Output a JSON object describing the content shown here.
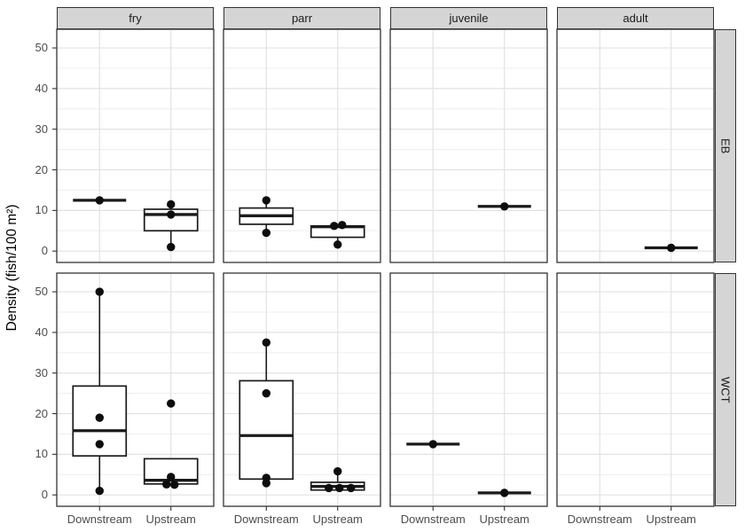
{
  "chart_data": {
    "type": "boxplot",
    "title": "",
    "ylabel": "Density (fish/100 m²)",
    "xlabel": "",
    "legend": "none",
    "grid": true,
    "col_facets": [
      "fry",
      "parr",
      "juvenile",
      "adult"
    ],
    "row_facets": [
      "EB",
      "WCT"
    ],
    "xcategories": [
      "Downstream",
      "Upstream"
    ],
    "ylim": [
      -2.8,
      54.6
    ],
    "y_major_ticks": [
      0,
      10,
      20,
      30,
      40,
      50
    ],
    "y_minor_ticks": [
      5,
      15,
      25,
      35,
      45
    ],
    "facets": [
      {
        "row": "EB",
        "col": "fry",
        "groups": [
          {
            "x": "Downstream",
            "stats": {
              "wmin": 12.5,
              "q1": 12.5,
              "median": 12.5,
              "q3": 12.5,
              "wmax": 12.5
            },
            "points": [
              {
                "y": 12.5
              }
            ]
          },
          {
            "x": "Upstream",
            "stats": {
              "wmin": 1,
              "q1": 5,
              "median": 9,
              "q3": 10.3,
              "wmax": 11.5
            },
            "points": [
              {
                "y": 11.5
              },
              {
                "y": 9
              },
              {
                "y": 1
              }
            ]
          }
        ]
      },
      {
        "row": "EB",
        "col": "parr",
        "groups": [
          {
            "x": "Downstream",
            "stats": {
              "wmin": 4.5,
              "q1": 6.6,
              "median": 8.7,
              "q3": 10.6,
              "wmax": 12.5
            },
            "points": [
              {
                "y": 12.5
              },
              {
                "y": 4.5
              }
            ]
          },
          {
            "x": "Upstream",
            "stats": {
              "wmin": 1.6,
              "q1": 3.4,
              "median": 6,
              "q3": 6.2,
              "wmax": 6.4
            },
            "points": [
              {
                "y": 6.2,
                "dx": -4
              },
              {
                "y": 6.4,
                "dx": 5
              },
              {
                "y": 1.6
              }
            ]
          }
        ]
      },
      {
        "row": "EB",
        "col": "juvenile",
        "groups": [
          {
            "x": "Upstream",
            "stats": {
              "wmin": 11,
              "q1": 11,
              "median": 11,
              "q3": 11,
              "wmax": 11
            },
            "points": [
              {
                "y": 11
              }
            ]
          }
        ]
      },
      {
        "row": "EB",
        "col": "adult",
        "groups": [
          {
            "x": "Upstream",
            "stats": {
              "wmin": 0.8,
              "q1": 0.8,
              "median": 0.8,
              "q3": 0.8,
              "wmax": 0.8
            },
            "points": [
              {
                "y": 0.8
              }
            ]
          }
        ]
      },
      {
        "row": "WCT",
        "col": "fry",
        "groups": [
          {
            "x": "Downstream",
            "stats": {
              "wmin": 1,
              "q1": 9.6,
              "median": 15.8,
              "q3": 26.8,
              "wmax": 50
            },
            "points": [
              {
                "y": 50
              },
              {
                "y": 19
              },
              {
                "y": 12.5
              },
              {
                "y": 1
              }
            ]
          },
          {
            "x": "Upstream",
            "stats": {
              "wmin": 2.5,
              "q1": 2.7,
              "median": 3.6,
              "q3": 8.9,
              "wmax": 8.9
            },
            "points": [
              {
                "y": 22.5
              },
              {
                "y": 4.4
              },
              {
                "y": 2.6,
                "dx": -5
              },
              {
                "y": 2.5,
                "dx": 4
              }
            ]
          }
        ]
      },
      {
        "row": "WCT",
        "col": "parr",
        "groups": [
          {
            "x": "Downstream",
            "stats": {
              "wmin": 2.9,
              "q1": 3.9,
              "median": 14.6,
              "q3": 28.1,
              "wmax": 37.5
            },
            "points": [
              {
                "y": 37.5
              },
              {
                "y": 25
              },
              {
                "y": 4.2
              },
              {
                "y": 2.9
              }
            ]
          },
          {
            "x": "Upstream",
            "stats": {
              "wmin": 1.2,
              "q1": 1.2,
              "median": 2.1,
              "q3": 3.1,
              "wmax": 5.8
            },
            "points": [
              {
                "y": 5.8
              },
              {
                "y": 1.7,
                "dx": -10
              },
              {
                "y": 1.7,
                "dx": 2
              },
              {
                "y": 1.7,
                "dx": 15
              }
            ]
          }
        ]
      },
      {
        "row": "WCT",
        "col": "juvenile",
        "groups": [
          {
            "x": "Downstream",
            "stats": {
              "wmin": 12.5,
              "q1": 12.5,
              "median": 12.5,
              "q3": 12.5,
              "wmax": 12.5
            },
            "points": [
              {
                "y": 12.5
              }
            ]
          },
          {
            "x": "Upstream",
            "stats": {
              "wmin": 0.5,
              "q1": 0.5,
              "median": 0.5,
              "q3": 0.5,
              "wmax": 0.5
            },
            "points": [
              {
                "y": 0.5
              }
            ]
          }
        ]
      },
      {
        "row": "WCT",
        "col": "adult",
        "groups": []
      }
    ]
  }
}
